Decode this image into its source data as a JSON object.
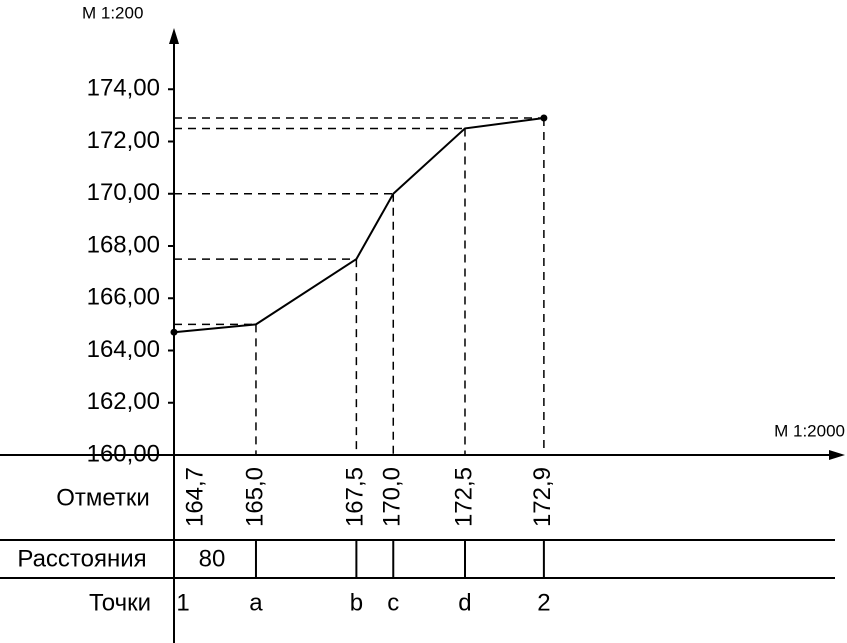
{
  "chart_data": {
    "type": "line",
    "y_scale_label": "М 1:200",
    "x_scale_label": "М 1:2000",
    "x": [
      0,
      80,
      178,
      214,
      284,
      361
    ],
    "values": [
      164.7,
      165.0,
      167.5,
      170.0,
      172.5,
      172.9
    ],
    "value_labels": [
      "164,7",
      "165,0",
      "167,5",
      "170,0",
      "172,5",
      "172,9"
    ],
    "points": [
      "1",
      "a",
      "b",
      "c",
      "d",
      "2"
    ],
    "row_labels": [
      "Отметки",
      "Расстояния",
      "Точки"
    ],
    "distances": [
      80
    ],
    "color": "#000000",
    "xlim": [
      0,
      650
    ],
    "ylim": [
      160,
      176
    ],
    "yticks": [
      {
        "value": 160,
        "label": "160,00"
      },
      {
        "value": 162,
        "label": "162,00"
      },
      {
        "value": 164,
        "label": "164,00"
      },
      {
        "value": 166,
        "label": "166,00"
      },
      {
        "value": 168,
        "label": "168,00"
      },
      {
        "value": 170,
        "label": "170,00"
      },
      {
        "value": 172,
        "label": "172,00"
      },
      {
        "value": 174,
        "label": "174,00"
      }
    ]
  }
}
